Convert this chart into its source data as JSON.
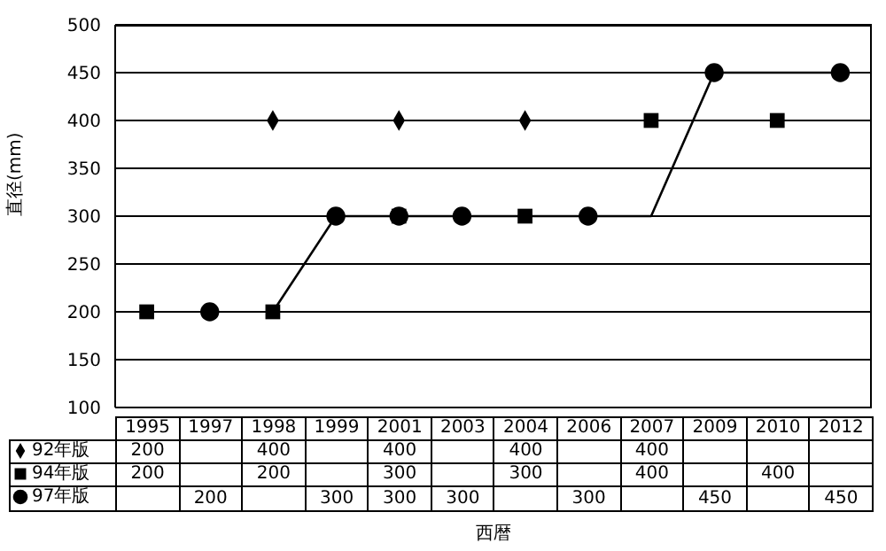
{
  "chart_data": {
    "type": "scatter",
    "xlabel": "西暦",
    "ylabel": "直径(mm)",
    "categories": [
      "1995",
      "1997",
      "1998",
      "1999",
      "2001",
      "2003",
      "2004",
      "2006",
      "2007",
      "2009",
      "2010",
      "2012"
    ],
    "series": [
      {
        "name": "92年版",
        "color": "#000000",
        "marker": "diamond",
        "values": [
          null,
          null,
          400,
          null,
          400,
          null,
          400,
          null,
          null,
          null,
          null,
          null
        ],
        "value_labels": [
          "200",
          null,
          "400",
          null,
          "400",
          null,
          "400",
          null,
          "400",
          null,
          null,
          null
        ]
      },
      {
        "name": "94年版",
        "color": "#000000",
        "marker": "square",
        "values": [
          200,
          null,
          200,
          null,
          300,
          null,
          300,
          null,
          400,
          null,
          400,
          null
        ],
        "value_labels": [
          "200",
          null,
          "200",
          null,
          "300",
          null,
          "300",
          null,
          "400",
          null,
          "400",
          null
        ]
      },
      {
        "name": "97年版",
        "color": "#000000",
        "marker": "circle",
        "values": [
          null,
          200,
          null,
          300,
          300,
          300,
          null,
          300,
          null,
          450,
          null,
          450
        ],
        "value_labels": [
          null,
          "200",
          null,
          "300",
          "300",
          "300",
          null,
          "300",
          null,
          "450",
          null,
          "450"
        ]
      },
      {
        "type": "line",
        "color": "#000000",
        "marker": "none",
        "line_style": "solid",
        "values": [
          null,
          null,
          200,
          300,
          300,
          300,
          300,
          300,
          300,
          450,
          450,
          450
        ]
      }
    ],
    "ylim": [
      100,
      500
    ],
    "yticks": [
      100,
      150,
      200,
      250,
      300,
      350,
      400,
      450,
      500
    ],
    "grid": "y",
    "legend": "bottom"
  }
}
